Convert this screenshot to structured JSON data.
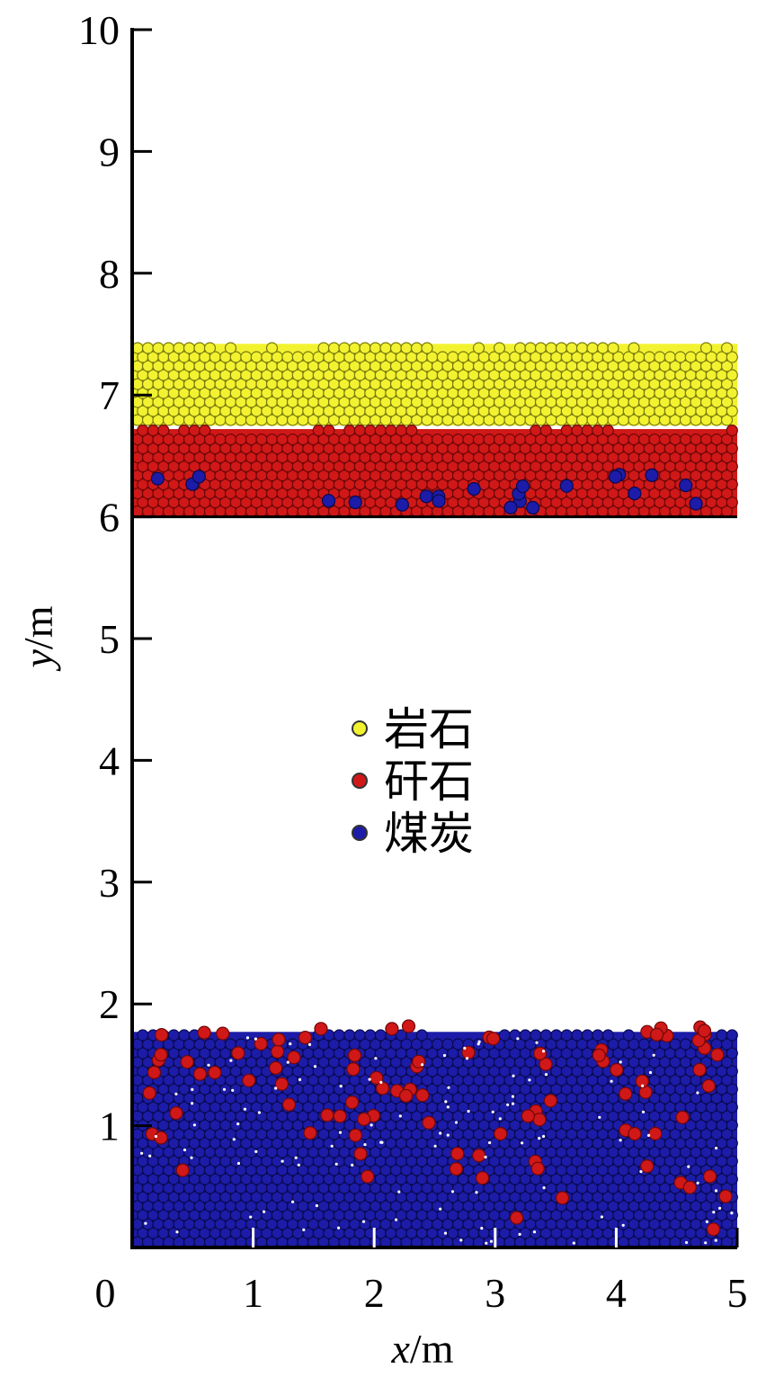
{
  "chart_data": {
    "type": "scatter",
    "title": "",
    "xlabel": {
      "var": "x",
      "unit": "/m"
    },
    "ylabel": {
      "var": "y",
      "unit": "/m"
    },
    "xlim": [
      0,
      5
    ],
    "ylim": [
      0,
      10
    ],
    "xticks": [
      0,
      1,
      2,
      3,
      4,
      5
    ],
    "yticks": [
      1,
      2,
      3,
      4,
      5,
      6,
      7,
      8,
      9,
      10
    ],
    "grid": false,
    "legend_position": "center",
    "series": [
      {
        "name": "岩石",
        "color": "#f2f230",
        "stroke": "#7a7a10"
      },
      {
        "name": "矸石",
        "color": "#d01818",
        "stroke": "#700808"
      },
      {
        "name": "煤炭",
        "color": "#1c1ca8",
        "stroke": "#0a0a50"
      }
    ],
    "layers": [
      {
        "series": "岩石",
        "y_bottom": 6.75,
        "y_top": 7.45
      },
      {
        "series": "矸石",
        "y_bottom": 6.0,
        "y_top": 6.75
      },
      {
        "series": "煤炭",
        "y_bottom": 0.0,
        "y_top": 1.8
      }
    ]
  }
}
